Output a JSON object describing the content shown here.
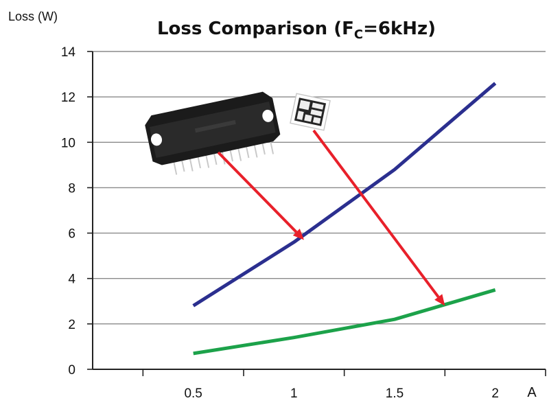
{
  "chart_data": {
    "type": "line",
    "title_parts": {
      "main": "Loss Comparison (F",
      "sub": "C",
      "tail": "=6kHz)"
    },
    "ylabel": "Loss (W)",
    "xunit": "A",
    "xticks": [
      "0.5",
      "1",
      "1.5",
      "2"
    ],
    "yticks": [
      "0",
      "2",
      "4",
      "6",
      "8",
      "10",
      "12",
      "14"
    ],
    "xlim": [
      0.0,
      2.25
    ],
    "ylim": [
      0,
      14
    ],
    "grid": "horizontal",
    "series": [
      {
        "color": "#2b2f8f",
        "x": [
          0.5,
          1.0,
          1.5,
          2.0
        ],
        "values": [
          2.8,
          5.6,
          8.8,
          12.6
        ]
      },
      {
        "color": "#1ca24a",
        "x": [
          0.5,
          1.0,
          1.5,
          2.0
        ],
        "values": [
          0.7,
          1.4,
          2.2,
          3.5
        ]
      }
    ],
    "annotations": [
      {
        "kind": "arrow",
        "pointer": "ipm-package-image",
        "target_x": 1.05,
        "target_y": 5.7,
        "color": "#e8202a"
      },
      {
        "kind": "arrow",
        "pointer": "chip-module-image",
        "target_x": 1.75,
        "target_y": 2.8,
        "color": "#e8202a"
      }
    ]
  }
}
